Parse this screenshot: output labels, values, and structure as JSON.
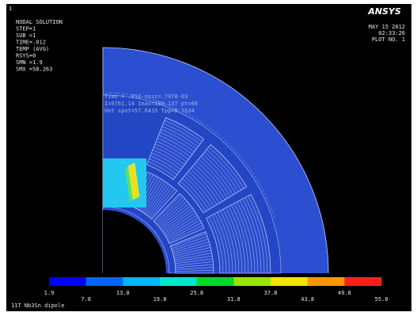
{
  "window_number": "1",
  "logo": "ANSYS",
  "info": {
    "lines": [
      "NODAL SOLUTION",
      "STEP=1",
      "SUB =1",
      "TIME=.012",
      "TEMP     (AVG)",
      "RSYS=0",
      "SMN =1.9",
      "SMX =58.263"
    ]
  },
  "timestamp": {
    "lines": [
      "MAY 15 2012",
      "02:33:26",
      "PLOT NO.   1"
    ]
  },
  "overlay": {
    "lines": [
      "Time = .012  nssc=.7078-03",
      "I=9761.14  Imax=100.137  pt=68",
      "Hot spot=57.6435  Tpp=8.7634"
    ]
  },
  "legend": {
    "labels": [
      "1.9",
      "7.8",
      "13.8",
      "19.8",
      "25.8",
      "31.8",
      "37.8",
      "43.8",
      "49.8",
      "55.8"
    ]
  },
  "caption": "11T Nb3Sn dipole"
}
